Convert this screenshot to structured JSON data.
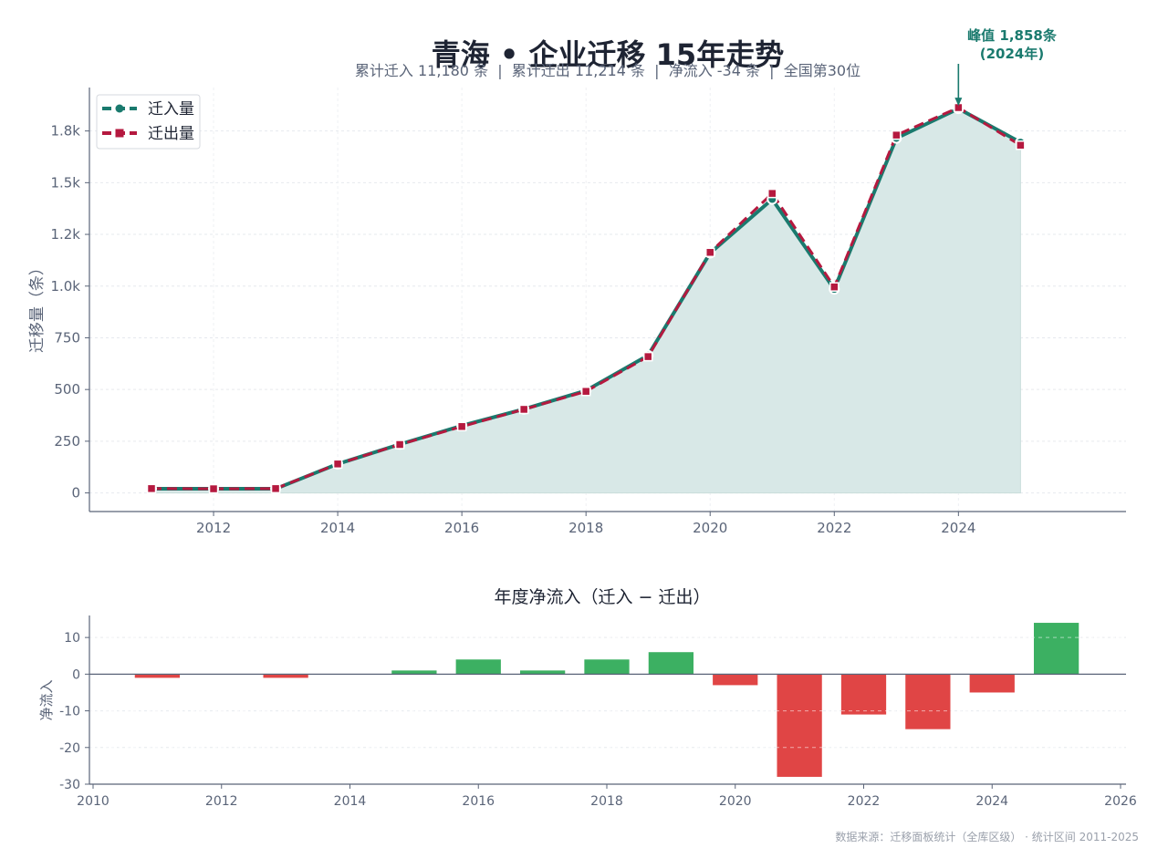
{
  "title": "青海 • 企业迁移 15年走势",
  "subtitle": "累计迁入 11,180 条  |  累计迁出 11,214 条  |  净流入 -34 条  |  全国第30位",
  "footer": "数据来源：迁移面板统计（全库区级） · 统计区间 2011-2025",
  "colors": {
    "inflow": "#1a7a6e",
    "outflow": "#b5193f",
    "area": "#d8e8e7",
    "positive": "#3cb062",
    "negative": "#e04545",
    "text": "#5a6478",
    "axis": "#5a6478",
    "title": "#1e2433"
  },
  "chart_data": [
    {
      "type": "line",
      "x": [
        2011,
        2012,
        2013,
        2014,
        2015,
        2016,
        2017,
        2018,
        2019,
        2020,
        2021,
        2022,
        2023,
        2024,
        2025
      ],
      "series": [
        {
          "name": "迁入量",
          "values": [
            20,
            20,
            20,
            140,
            235,
            325,
            405,
            495,
            665,
            1160,
            1420,
            985,
            1715,
            1858,
            1695
          ]
        },
        {
          "name": "迁出量",
          "values": [
            21,
            20,
            21,
            140,
            234,
            321,
            404,
            491,
            659,
            1163,
            1448,
            996,
            1730,
            1863,
            1681
          ]
        }
      ],
      "ylabel": "迁移量（条）",
      "ylim": [
        -90,
        1960
      ],
      "xlim": [
        2010.0,
        2026.7
      ],
      "xticks": [
        2012,
        2014,
        2016,
        2018,
        2020,
        2022,
        2024
      ],
      "yticks": [
        0,
        250,
        500,
        750,
        1000,
        1250,
        1500,
        1750
      ],
      "ytick_labels": [
        "0",
        "250",
        "500",
        "750",
        "1.0k",
        "1.2k",
        "1.5k",
        "1.8k"
      ],
      "legend": "top-left",
      "grid": true,
      "annotation": {
        "line1": "峰值 1,858条",
        "line2": "(2024年)",
        "x": 2024,
        "y": 1858
      }
    },
    {
      "type": "bar",
      "title": "年度净流入（迁入 − 迁出）",
      "ylabel": "净流入",
      "x": [
        2011,
        2012,
        2013,
        2014,
        2015,
        2016,
        2017,
        2018,
        2019,
        2020,
        2021,
        2022,
        2023,
        2024,
        2025
      ],
      "values": [
        -1,
        0,
        -1,
        0,
        1,
        4,
        1,
        4,
        6,
        -3,
        -28,
        -11,
        -15,
        -5,
        14
      ],
      "ylim": [
        -30,
        16
      ],
      "xlim": [
        2010,
        2026
      ],
      "xticks": [
        2010,
        2012,
        2014,
        2016,
        2018,
        2020,
        2022,
        2024,
        2026
      ],
      "yticks": [
        -30,
        -20,
        -10,
        0,
        10
      ],
      "grid": true
    }
  ]
}
